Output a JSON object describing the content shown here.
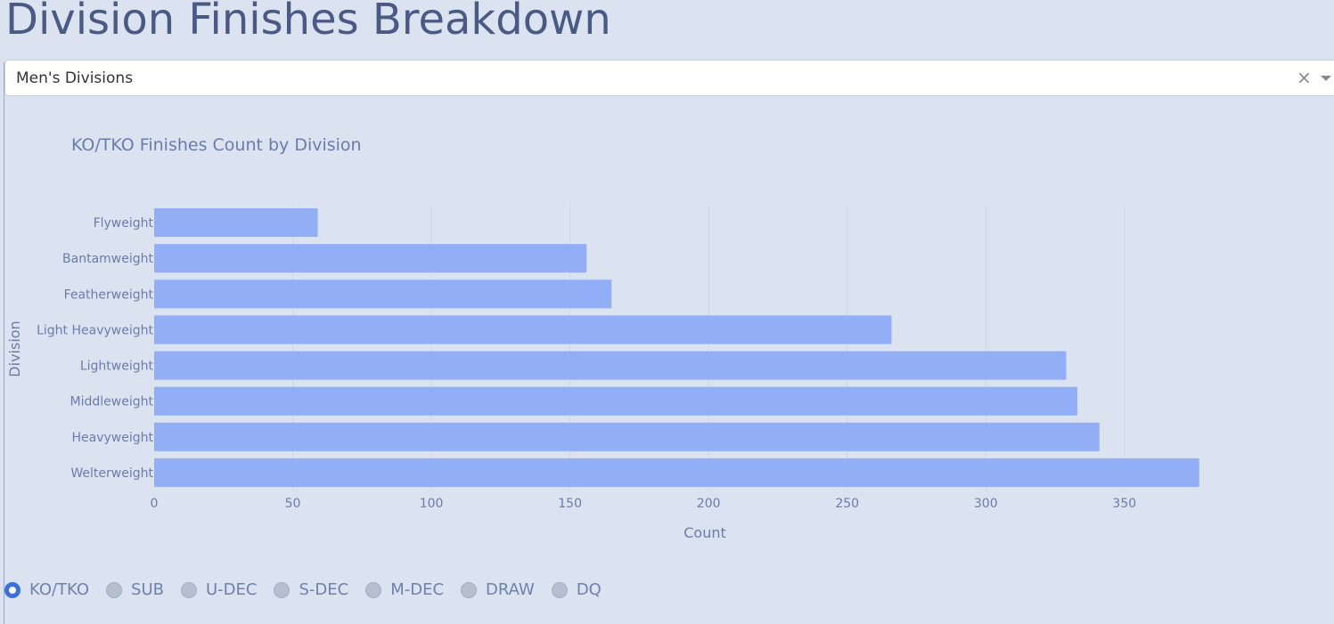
{
  "page": {
    "title": "Division Finishes Breakdown"
  },
  "dropdown": {
    "selected": "Men's Divisions",
    "clear_symbol": "×"
  },
  "finish_types": [
    {
      "label": "KO/TKO",
      "checked": true
    },
    {
      "label": "SUB",
      "checked": false
    },
    {
      "label": "U-DEC",
      "checked": false
    },
    {
      "label": "S-DEC",
      "checked": false
    },
    {
      "label": "M-DEC",
      "checked": false
    },
    {
      "label": "DRAW",
      "checked": false
    },
    {
      "label": "DQ",
      "checked": false
    }
  ],
  "chart_data": {
    "type": "bar",
    "orientation": "horizontal",
    "title": "KO/TKO Finishes Count by Division",
    "xlabel": "Count",
    "ylabel": "Division",
    "categories": [
      "Flyweight",
      "Bantamweight",
      "Featherweight",
      "Light Heavyweight",
      "Lightweight",
      "Middleweight",
      "Heavyweight",
      "Welterweight"
    ],
    "values": [
      59,
      156,
      165,
      266,
      329,
      333,
      341,
      377
    ],
    "xlim": [
      0,
      397
    ],
    "xticks": [
      0,
      50,
      100,
      150,
      200,
      250,
      300,
      350
    ],
    "grid": true,
    "bar_color": "#91aef7"
  }
}
